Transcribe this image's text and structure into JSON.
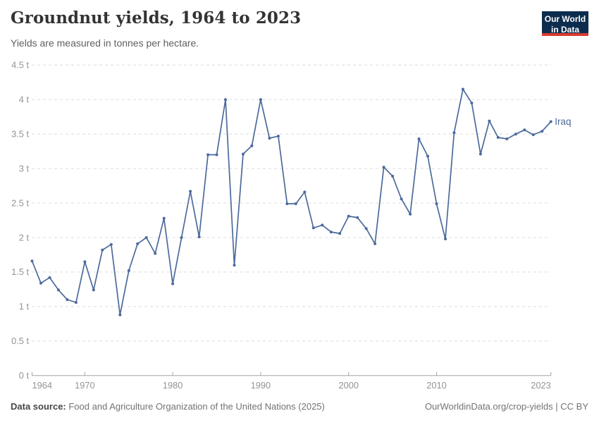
{
  "header": {
    "title": "Groundnut yields, 1964 to 2023",
    "subtitle": "Yields are measured in tonnes per hectare."
  },
  "logo": {
    "line1": "Our World",
    "line2": "in Data",
    "bg_color": "#0d2d4e",
    "accent_color": "#d93a2e"
  },
  "chart_data": {
    "type": "line",
    "title": "Groundnut yields, 1964 to 2023",
    "unit": "tonnes per hectare",
    "ylim": [
      0,
      4.5
    ],
    "grid": "dashed-horizontal",
    "legend": "end-of-line-label",
    "axis_color": "#a3a3a3",
    "grid_color": "#dcdcdc",
    "tick_text_color": "#949494",
    "x": [
      1964,
      1965,
      1966,
      1967,
      1968,
      1969,
      1970,
      1971,
      1972,
      1973,
      1974,
      1975,
      1976,
      1977,
      1978,
      1979,
      1980,
      1981,
      1982,
      1983,
      1984,
      1985,
      1986,
      1987,
      1988,
      1989,
      1990,
      1991,
      1992,
      1993,
      1994,
      1995,
      1996,
      1997,
      1998,
      1999,
      2000,
      2001,
      2002,
      2003,
      2004,
      2005,
      2006,
      2007,
      2008,
      2009,
      2010,
      2011,
      2012,
      2013,
      2014,
      2015,
      2016,
      2017,
      2018,
      2019,
      2020,
      2021,
      2022,
      2023
    ],
    "series": [
      {
        "name": "Iraq",
        "color": "#4c6a9c",
        "values": [
          1.66,
          1.34,
          1.42,
          1.24,
          1.1,
          1.06,
          1.65,
          1.24,
          1.82,
          1.9,
          0.88,
          1.52,
          1.91,
          2.0,
          1.77,
          2.28,
          1.33,
          2.0,
          2.67,
          2.01,
          3.2,
          3.2,
          4.0,
          1.6,
          3.21,
          3.33,
          4.0,
          3.44,
          3.47,
          2.49,
          2.49,
          2.66,
          2.14,
          2.18,
          2.08,
          2.06,
          2.31,
          2.29,
          2.13,
          1.91,
          3.02,
          2.89,
          2.56,
          2.34,
          3.43,
          3.18,
          2.49,
          1.98,
          3.52,
          4.15,
          3.95,
          3.21,
          3.69,
          3.45,
          3.43,
          3.5,
          3.56,
          3.49,
          3.54,
          3.68
        ]
      }
    ],
    "y_ticks": [
      {
        "value": 0,
        "label": "0 t"
      },
      {
        "value": 0.5,
        "label": "0.5 t"
      },
      {
        "value": 1,
        "label": "1 t"
      },
      {
        "value": 1.5,
        "label": "1.5 t"
      },
      {
        "value": 2,
        "label": "2 t"
      },
      {
        "value": 2.5,
        "label": "2.5 t"
      },
      {
        "value": 3,
        "label": "3 t"
      },
      {
        "value": 3.5,
        "label": "3.5 t"
      },
      {
        "value": 4,
        "label": "4 t"
      },
      {
        "value": 4.5,
        "label": "4.5 t"
      }
    ],
    "x_ticks": [
      {
        "value": 1964,
        "label": "1964"
      },
      {
        "value": 1970,
        "label": "1970"
      },
      {
        "value": 1980,
        "label": "1980"
      },
      {
        "value": 1990,
        "label": "1990"
      },
      {
        "value": 2000,
        "label": "2000"
      },
      {
        "value": 2010,
        "label": "2010"
      },
      {
        "value": 2023,
        "label": "2023"
      }
    ]
  },
  "footer": {
    "source_label": "Data source:",
    "source_text": " Food and Agriculture Organization of the United Nations (2025)",
    "license_text": "OurWorldinData.org/crop-yields | CC BY"
  }
}
